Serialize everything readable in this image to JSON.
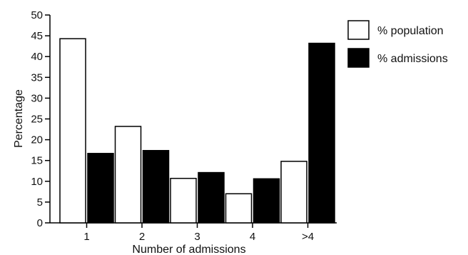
{
  "chart_data": {
    "type": "bar",
    "categories": [
      "1",
      "2",
      "3",
      "4",
      ">4"
    ],
    "series": [
      {
        "name": "% population",
        "values": [
          44.3,
          23.2,
          10.7,
          7.0,
          14.8
        ],
        "fill": "#ffffff",
        "stroke": "#000000"
      },
      {
        "name": "% admissions",
        "values": [
          16.7,
          17.4,
          12.1,
          10.6,
          43.2
        ],
        "fill": "#000000",
        "stroke": "#000000"
      }
    ],
    "xlabel": "Number of admissions",
    "ylabel": "Percentage",
    "ylim": [
      0,
      50
    ],
    "yticks": [
      "0",
      "5",
      "10",
      "15",
      "20",
      "25",
      "30",
      "35",
      "40",
      "45",
      "50"
    ],
    "grid": false,
    "legend_position": "top-right"
  }
}
